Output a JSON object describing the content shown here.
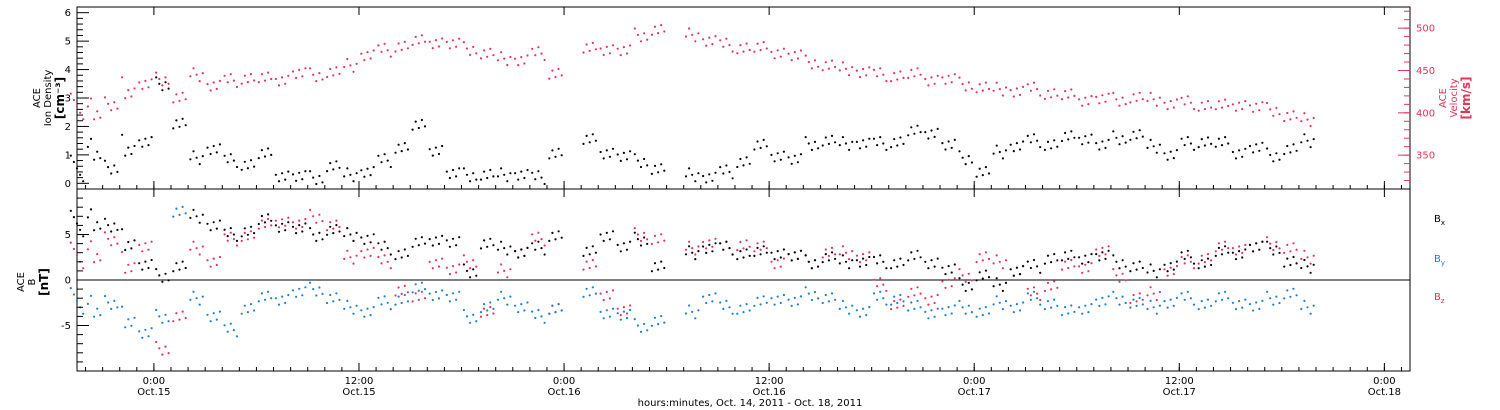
{
  "colors": {
    "axes": "#000000",
    "density": "#000000",
    "velocity": "#e8325a",
    "bx": "#000000",
    "by": "#1a7fd6",
    "bz": "#e8325a"
  },
  "x_ticks": [
    {
      "h": 24,
      "t1": "0:00",
      "t2": "Oct.15"
    },
    {
      "h": 36,
      "t1": "12:00",
      "t2": "Oct.15"
    },
    {
      "h": 48,
      "t1": "0:00",
      "t2": "Oct.16"
    },
    {
      "h": 60,
      "t1": "12:00",
      "t2": "Oct.16"
    },
    {
      "h": 72,
      "t1": "0:00",
      "t2": "Oct.17"
    },
    {
      "h": 84,
      "t1": "12:00",
      "t2": "Oct.17"
    },
    {
      "h": 96,
      "t1": "0:00",
      "t2": "Oct.18"
    }
  ],
  "x_axis_label": "hours:minutes, Oct. 14, 2011 - Oct. 18, 2011",
  "chart_data": [
    {
      "type": "scatter",
      "panel": "top",
      "ylabel_left": [
        "ACE",
        "Ion Density",
        "[cm⁻³]"
      ],
      "ylabel_right": [
        "ACE",
        "Velocity",
        "[km/s]"
      ],
      "x_unit": "hours since Oct. 14, 2011 0:00",
      "xlim": [
        19.5,
        97.5
      ],
      "ylim_left": [
        -0.2,
        6.2
      ],
      "ylim_right": [
        310,
        525
      ],
      "y_ticks_left": [
        "0",
        "1",
        "2",
        "3",
        "4",
        "5",
        "6"
      ],
      "y_ticks_right": [
        "350",
        "400",
        "450",
        "500"
      ],
      "series": [
        {
          "name": "Ion Density",
          "axis": "left",
          "x": [
            19.5,
            20.5,
            21.5,
            22.5,
            23.5,
            24.5,
            25.5,
            26.5,
            27.5,
            28.5,
            29.5,
            30.5,
            31.5,
            32.5,
            33.5,
            34.5,
            35.5,
            36.5,
            37.5,
            38.5,
            39.5,
            40.5,
            41.5,
            42.5,
            43.5,
            44.5,
            45.5,
            46.5,
            47.5,
            49.5,
            50.5,
            51.5,
            52.5,
            53.5,
            55.5,
            56.5,
            57.5,
            58.5,
            59.5,
            60.5,
            61.5,
            62.5,
            63.5,
            64.5,
            65.5,
            66.5,
            67.5,
            68.5,
            69.5,
            70.5,
            71.5,
            72.5,
            73.5,
            74.5,
            75.5,
            76.5,
            77.5,
            78.5,
            79.5,
            80.5,
            81.5,
            82.5,
            83.5,
            84.5,
            85.5,
            86.5,
            87.5,
            88.5,
            89.5,
            90.5,
            91.5
          ],
          "y": [
            0.3,
            1.0,
            0.4,
            1.2,
            1.4,
            3.5,
            2.1,
            0.9,
            1.2,
            0.8,
            0.7,
            1.0,
            0.3,
            0.2,
            0.2,
            0.6,
            0.3,
            0.4,
            0.8,
            1.3,
            2.0,
            1.2,
            0.3,
            0.3,
            0.3,
            0.3,
            0.3,
            0.2,
            1.1,
            1.5,
            1.1,
            0.9,
            0.8,
            0.5,
            0.3,
            0.2,
            0.4,
            0.8,
            1.3,
            1.0,
            0.8,
            1.4,
            1.5,
            1.4,
            1.4,
            1.4,
            1.5,
            1.8,
            1.8,
            1.3,
            0.9,
            0.4,
            1.1,
            1.3,
            1.5,
            1.4,
            1.6,
            1.6,
            1.3,
            1.6,
            1.7,
            1.3,
            1.0,
            1.4,
            1.5,
            1.4,
            1.1,
            1.2,
            1.0,
            1.2,
            1.5
          ]
        },
        {
          "name": "Velocity",
          "axis": "right",
          "x": [
            19.5,
            20.5,
            21.5,
            22.5,
            23.5,
            24.5,
            25.5,
            26.5,
            27.5,
            28.5,
            29.5,
            30.5,
            31.5,
            32.5,
            33.5,
            34.5,
            35.5,
            36.5,
            37.5,
            38.5,
            39.5,
            40.5,
            41.5,
            42.5,
            43.5,
            44.5,
            45.5,
            46.5,
            47.5,
            49.5,
            50.5,
            51.5,
            52.5,
            53.5,
            55.5,
            56.5,
            57.5,
            58.5,
            59.5,
            60.5,
            61.5,
            62.5,
            63.5,
            64.5,
            65.5,
            66.5,
            67.5,
            68.5,
            69.5,
            70.5,
            71.5,
            72.5,
            73.5,
            74.5,
            75.5,
            76.5,
            77.5,
            78.5,
            79.5,
            80.5,
            81.5,
            82.5,
            83.5,
            84.5,
            85.5,
            86.5,
            87.5,
            88.5,
            89.5,
            90.5,
            91.5
          ],
          "y": [
            400,
            398,
            405,
            425,
            432,
            440,
            418,
            445,
            432,
            438,
            442,
            440,
            440,
            445,
            445,
            448,
            456,
            468,
            474,
            480,
            484,
            484,
            480,
            476,
            470,
            464,
            462,
            470,
            448,
            475,
            476,
            472,
            492,
            498,
            492,
            485,
            480,
            478,
            476,
            472,
            466,
            460,
            456,
            452,
            448,
            445,
            445,
            445,
            440,
            438,
            434,
            430,
            428,
            425,
            428,
            424,
            420,
            416,
            415,
            416,
            418,
            416,
            410,
            412,
            410,
            408,
            410,
            405,
            404,
            396,
            392
          ]
        }
      ]
    },
    {
      "type": "scatter",
      "panel": "bottom",
      "ylabel_left": [
        "ACE",
        "B",
        "[nT]"
      ],
      "x_unit": "hours since Oct. 14, 2011 0:00",
      "xlim": [
        19.5,
        97.5
      ],
      "ylim": [
        -10,
        10
      ],
      "y_ticks": [
        "-5",
        "0",
        "5"
      ],
      "legend_position": "right",
      "legend": [
        {
          "label": "B",
          "sub": "x"
        },
        {
          "label": "B",
          "sub": "y"
        },
        {
          "label": "B",
          "sub": "z"
        }
      ],
      "series": [
        {
          "name": "Bx",
          "x": [
            19.5,
            20.5,
            21.5,
            22.5,
            23.5,
            24.5,
            25.5,
            26.5,
            27.5,
            28.5,
            29.5,
            30.5,
            31.5,
            32.5,
            33.5,
            34.5,
            35.5,
            36.5,
            37.5,
            38.5,
            39.5,
            40.5,
            41.5,
            42.5,
            43.5,
            44.5,
            45.5,
            46.5,
            47.5,
            49.5,
            50.5,
            51.5,
            52.5,
            53.5,
            55.5,
            56.5,
            57.5,
            58.5,
            59.5,
            60.5,
            61.5,
            62.5,
            63.5,
            64.5,
            65.5,
            66.5,
            67.5,
            68.5,
            69.5,
            70.5,
            71.5,
            72.5,
            73.5,
            74.5,
            75.5,
            76.5,
            77.5,
            78.5,
            79.5,
            80.5,
            81.5,
            82.5,
            83.5,
            84.5,
            85.5,
            86.5,
            87.5,
            88.5,
            89.5,
            90.5,
            91.5
          ],
          "y": [
            5.5,
            6.0,
            5.5,
            4.0,
            1.5,
            0.5,
            1.5,
            7.0,
            6.0,
            5.0,
            5.5,
            6.5,
            6.0,
            5.5,
            5.0,
            5.5,
            5.0,
            4.5,
            3.5,
            3.0,
            4.0,
            4.5,
            4.0,
            1.0,
            4.0,
            3.5,
            3.0,
            3.5,
            5.0,
            3.0,
            5.0,
            3.5,
            4.5,
            1.5,
            3.0,
            3.5,
            3.5,
            3.0,
            3.0,
            3.0,
            2.5,
            2.0,
            2.5,
            2.0,
            2.0,
            2.0,
            2.0,
            2.5,
            2.0,
            1.0,
            -0.5,
            0.5,
            -0.5,
            1.0,
            1.5,
            2.5,
            2.5,
            2.5,
            2.5,
            2.0,
            1.5,
            1.0,
            1.5,
            2.5,
            2.0,
            3.0,
            3.0,
            3.5,
            3.5,
            2.0,
            1.5
          ]
        },
        {
          "name": "By",
          "x": [
            19.5,
            20.5,
            21.5,
            22.5,
            23.5,
            24.5,
            25.5,
            26.5,
            27.5,
            28.5,
            29.5,
            30.5,
            31.5,
            32.5,
            33.5,
            34.5,
            35.5,
            36.5,
            37.5,
            38.5,
            39.5,
            40.5,
            41.5,
            42.5,
            43.5,
            44.5,
            45.5,
            46.5,
            47.5,
            49.5,
            50.5,
            51.5,
            52.5,
            53.5,
            55.5,
            56.5,
            57.5,
            58.5,
            59.5,
            60.5,
            61.5,
            62.5,
            63.5,
            64.5,
            65.5,
            66.5,
            67.5,
            68.5,
            69.5,
            70.5,
            71.5,
            72.5,
            73.5,
            74.5,
            75.5,
            76.5,
            77.5,
            78.5,
            79.5,
            80.5,
            81.5,
            82.5,
            83.5,
            84.5,
            85.5,
            86.5,
            87.5,
            88.5,
            89.5,
            90.5,
            91.5
          ],
          "y": [
            -3.0,
            -3.5,
            -3.0,
            -4.5,
            -6.0,
            -4.0,
            7.5,
            -2.0,
            -4.0,
            -5.5,
            -3.0,
            -2.0,
            -2.0,
            -1.5,
            -1.0,
            -2.0,
            -3.0,
            -3.5,
            -2.5,
            -2.0,
            -1.0,
            -1.5,
            -2.0,
            -4.0,
            -3.0,
            -2.0,
            -3.0,
            -4.0,
            -3.0,
            -1.5,
            -3.5,
            -4.0,
            -5.0,
            -4.5,
            -3.5,
            -2.0,
            -3.0,
            -3.0,
            -2.5,
            -2.0,
            -2.5,
            -1.5,
            -2.0,
            -3.0,
            -3.5,
            -2.0,
            -2.0,
            -3.0,
            -3.5,
            -3.5,
            -3.0,
            -3.5,
            -2.5,
            -3.0,
            -2.0,
            -2.5,
            -3.5,
            -3.0,
            -2.5,
            -2.0,
            -2.5,
            -3.0,
            -2.5,
            -2.0,
            -2.5,
            -2.0,
            -2.5,
            -3.0,
            -2.0,
            -1.5,
            -3.0
          ]
        },
        {
          "name": "Bz",
          "x": [
            19.5,
            20.5,
            21.5,
            22.5,
            23.5,
            24.5,
            25.5,
            26.5,
            27.5,
            28.5,
            29.5,
            30.5,
            31.5,
            32.5,
            33.5,
            34.5,
            35.5,
            36.5,
            37.5,
            38.5,
            39.5,
            40.5,
            41.5,
            42.5,
            43.5,
            44.5,
            45.5,
            46.5,
            47.5,
            49.5,
            50.5,
            51.5,
            52.5,
            53.5,
            55.5,
            56.5,
            57.5,
            58.5,
            59.5,
            60.5,
            61.5,
            62.5,
            63.5,
            64.5,
            65.5,
            66.5,
            67.5,
            68.5,
            69.5,
            70.5,
            71.5,
            72.5,
            73.5,
            74.5,
            75.5,
            76.5,
            77.5,
            78.5,
            79.5,
            80.5,
            81.5,
            82.5,
            83.5,
            84.5,
            85.5,
            86.5,
            87.5,
            88.5,
            89.5,
            90.5,
            91.5
          ],
          "y": [
            2.0,
            2.5,
            4.0,
            1.5,
            3.5,
            -7.5,
            -4.0,
            3.5,
            2.0,
            4.5,
            5.0,
            6.0,
            6.5,
            6.0,
            7.0,
            6.0,
            2.5,
            3.0,
            2.0,
            -1.0,
            -2.0,
            2.0,
            1.0,
            2.0,
            -3.5,
            1.0,
            3.0,
            4.5,
            -3.0,
            1.5,
            -1.5,
            -3.5,
            5.0,
            4.5,
            3.5,
            4.0,
            3.5,
            4.0,
            3.5,
            2.0,
            2.5,
            2.0,
            3.0,
            3.0,
            2.5,
            -0.5,
            -2.5,
            -1.5,
            -2.0,
            -0.5,
            0.5,
            2.5,
            2.0,
            1.0,
            -1.5,
            -0.5,
            1.5,
            1.5,
            3.0,
            0.5,
            -2.0,
            -1.5,
            1.0,
            2.0,
            2.5,
            3.5,
            3.5,
            3.5,
            4.0,
            3.5,
            2.5
          ]
        }
      ]
    }
  ]
}
